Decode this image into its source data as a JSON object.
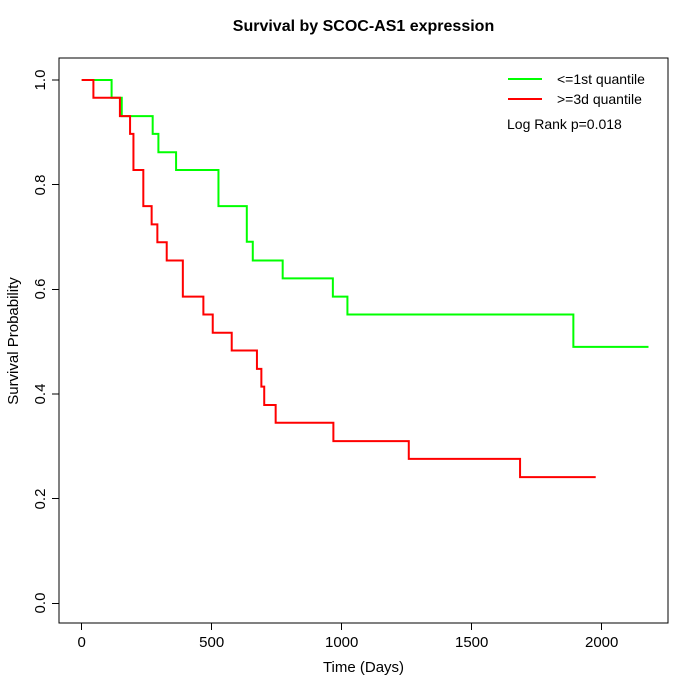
{
  "title": "Survival by SCOC-AS1 expression",
  "chart_data": {
    "type": "line",
    "subtype": "kaplan-meier-step",
    "title": "Survival by SCOC-AS1 expression",
    "xlabel": "Time (Days)",
    "ylabel": "Survival Probability",
    "xlim": [
      0,
      2180
    ],
    "ylim": [
      0,
      1
    ],
    "grid": false,
    "legend_position": "top-right",
    "x_tick_values": [
      0,
      500,
      1000,
      1500,
      2000
    ],
    "x_tick_labels": [
      "0",
      "500",
      "1000",
      "1500",
      "2000"
    ],
    "y_tick_values": [
      0,
      0.2,
      0.4,
      0.6,
      0.8,
      1.0
    ],
    "y_tick_labels": [
      "0.0",
      "0.2",
      "0.4",
      "0.6",
      "0.8",
      "1.0"
    ],
    "series": [
      {
        "name": "<=1st quantile",
        "color": "#00ff00",
        "end_time": 2180,
        "steps": [
          [
            0,
            1.0
          ],
          [
            115,
            0.966
          ],
          [
            154,
            0.931
          ],
          [
            273,
            0.897
          ],
          [
            295,
            0.862
          ],
          [
            363,
            0.828
          ],
          [
            526,
            0.759
          ],
          [
            635,
            0.691
          ],
          [
            658,
            0.655
          ],
          [
            773,
            0.621
          ],
          [
            966,
            0.586
          ],
          [
            1022,
            0.552
          ],
          [
            1891,
            0.49
          ]
        ]
      },
      {
        "name": ">=3d quantile",
        "color": "#ff0000",
        "end_time": 1977,
        "steps": [
          [
            0,
            1.0
          ],
          [
            45,
            0.966
          ],
          [
            147,
            0.931
          ],
          [
            186,
            0.897
          ],
          [
            199,
            0.828
          ],
          [
            237,
            0.759
          ],
          [
            269,
            0.724
          ],
          [
            291,
            0.69
          ],
          [
            327,
            0.655
          ],
          [
            389,
            0.586
          ],
          [
            468,
            0.552
          ],
          [
            504,
            0.517
          ],
          [
            577,
            0.483
          ],
          [
            674,
            0.448
          ],
          [
            691,
            0.414
          ],
          [
            702,
            0.379
          ],
          [
            746,
            0.345
          ],
          [
            968,
            0.31
          ],
          [
            1258,
            0.276
          ],
          [
            1686,
            0.241
          ]
        ]
      }
    ],
    "annotation": "Log Rank p=0.018"
  }
}
